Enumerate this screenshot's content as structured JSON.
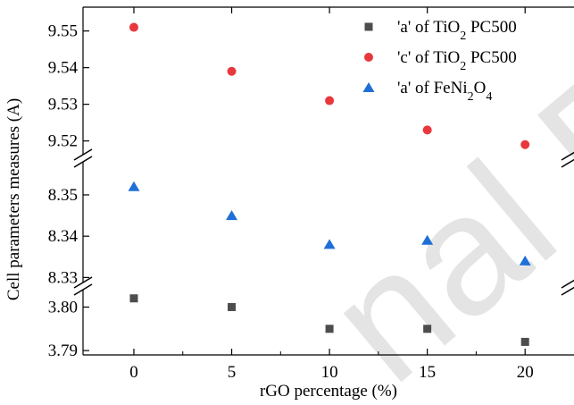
{
  "chart_data": {
    "type": "scatter",
    "xlabel": "rGO percentage (%)",
    "ylabel": "Cell parameters measures (A)",
    "x_ticks": [
      0,
      5,
      10,
      15,
      20
    ],
    "xlim": [
      -2.6,
      22.5
    ],
    "y_segments": [
      {
        "range": [
          3.789,
          3.804
        ],
        "ticks": [
          3.79,
          3.8
        ]
      },
      {
        "range": [
          8.329,
          8.358
        ],
        "ticks": [
          8.33,
          8.34,
          8.35
        ]
      },
      {
        "range": [
          9.5165,
          9.5565
        ],
        "ticks": [
          9.52,
          9.53,
          9.54,
          9.55
        ]
      }
    ],
    "x": [
      0,
      5,
      10,
      15,
      20
    ],
    "series": [
      {
        "name": "'a' of TiO2 PC500",
        "name_parts": [
          "'a' of TiO",
          "2",
          " PC500"
        ],
        "marker": "square",
        "color": "#4d4d4d",
        "segment": 0,
        "values": [
          3.802,
          3.8,
          3.795,
          3.795,
          3.792
        ]
      },
      {
        "name": "'c' of TiO2 PC500",
        "name_parts": [
          "'c' of TiO",
          "2",
          " PC500"
        ],
        "marker": "circle",
        "color": "#e8383d",
        "segment": 2,
        "values": [
          9.551,
          9.539,
          9.531,
          9.523,
          9.519
        ]
      },
      {
        "name": "'a' of FeNi2O4",
        "name_parts": [
          "'a' of FeNi",
          "2",
          "O",
          "4"
        ],
        "marker": "triangle",
        "color": "#1f6fd6",
        "segment": 1,
        "values": [
          8.352,
          8.345,
          8.338,
          8.339,
          8.334
        ]
      }
    ],
    "legend": "top-right",
    "grid": false
  },
  "watermark": "nal P"
}
